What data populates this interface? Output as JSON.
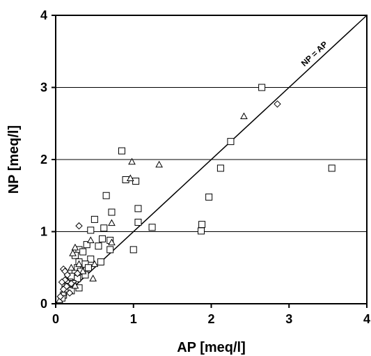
{
  "chart_data": {
    "type": "scatter",
    "xlabel": "AP [meq/l]",
    "ylabel": "NP [meq/l]",
    "xlim": [
      0,
      4
    ],
    "ylim": [
      0,
      4
    ],
    "x_ticks": [
      "0",
      "1",
      "2",
      "3",
      "4"
    ],
    "y_ticks": [
      "0",
      "1",
      "2",
      "3",
      "4"
    ],
    "grid": "horizontal",
    "reference_line": {
      "label": "NP = AP",
      "x": [
        0,
        4
      ],
      "y": [
        0,
        4
      ]
    },
    "series": [
      {
        "marker": "square",
        "points": [
          [
            2.65,
            3.0
          ],
          [
            2.25,
            2.25
          ],
          [
            2.12,
            1.88
          ],
          [
            3.55,
            1.88
          ],
          [
            1.97,
            1.48
          ],
          [
            1.88,
            1.1
          ],
          [
            1.87,
            1.01
          ],
          [
            0.85,
            2.12
          ],
          [
            0.9,
            1.72
          ],
          [
            1.03,
            1.7
          ],
          [
            0.65,
            1.5
          ],
          [
            1.06,
            1.32
          ],
          [
            0.72,
            1.27
          ],
          [
            0.5,
            1.17
          ],
          [
            1.06,
            1.13
          ],
          [
            1.24,
            1.06
          ],
          [
            0.62,
            1.05
          ],
          [
            0.45,
            1.02
          ],
          [
            1.0,
            0.75
          ],
          [
            0.6,
            0.9
          ],
          [
            0.7,
            0.88
          ],
          [
            0.4,
            0.82
          ],
          [
            0.55,
            0.8
          ],
          [
            0.7,
            0.75
          ],
          [
            0.3,
            0.75
          ],
          [
            0.35,
            0.72
          ],
          [
            0.25,
            0.67
          ],
          [
            0.45,
            0.62
          ],
          [
            0.3,
            0.58
          ],
          [
            0.58,
            0.58
          ],
          [
            0.38,
            0.55
          ],
          [
            0.28,
            0.5
          ],
          [
            0.42,
            0.5
          ],
          [
            0.32,
            0.45
          ],
          [
            0.25,
            0.42
          ],
          [
            0.38,
            0.4
          ],
          [
            0.2,
            0.38
          ],
          [
            0.28,
            0.35
          ],
          [
            0.18,
            0.3
          ],
          [
            0.22,
            0.28
          ],
          [
            0.15,
            0.25
          ],
          [
            0.3,
            0.22
          ],
          [
            0.12,
            0.2
          ],
          [
            0.2,
            0.18
          ],
          [
            0.1,
            0.12
          ],
          [
            0.08,
            0.08
          ]
        ]
      },
      {
        "marker": "triangle",
        "points": [
          [
            2.42,
            2.6
          ],
          [
            0.98,
            1.97
          ],
          [
            1.33,
            1.93
          ],
          [
            0.96,
            1.74
          ],
          [
            0.72,
            1.12
          ],
          [
            0.45,
            0.88
          ],
          [
            0.72,
            0.85
          ],
          [
            0.25,
            0.78
          ],
          [
            0.48,
            0.35
          ],
          [
            0.22,
            0.7
          ],
          [
            0.5,
            0.55
          ],
          [
            0.3,
            0.55
          ],
          [
            0.2,
            0.5
          ],
          [
            0.35,
            0.45
          ],
          [
            0.15,
            0.32
          ],
          [
            0.25,
            0.25
          ],
          [
            0.1,
            0.15
          ],
          [
            0.05,
            0.05
          ]
        ]
      },
      {
        "marker": "diamond",
        "points": [
          [
            2.85,
            2.77
          ],
          [
            0.3,
            1.08
          ],
          [
            0.1,
            0.48
          ],
          [
            0.12,
            0.45
          ],
          [
            0.28,
            0.42
          ],
          [
            0.15,
            0.4
          ],
          [
            0.12,
            0.33
          ],
          [
            0.08,
            0.3
          ],
          [
            0.2,
            0.28
          ],
          [
            0.14,
            0.24
          ],
          [
            0.1,
            0.2
          ],
          [
            0.18,
            0.15
          ],
          [
            0.06,
            0.1
          ]
        ]
      }
    ]
  }
}
